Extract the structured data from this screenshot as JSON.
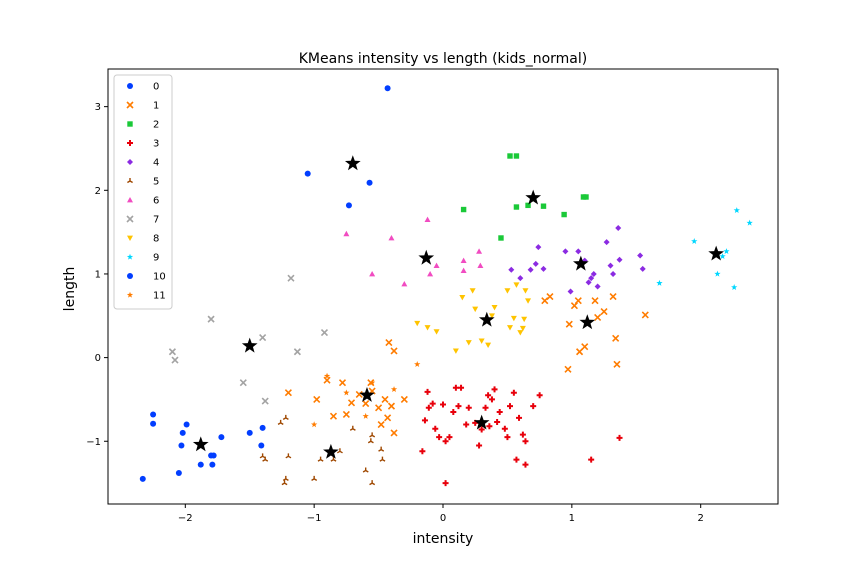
{
  "chart_data": {
    "type": "scatter",
    "title": "KMeans intensity vs length (kids_normal)",
    "xlabel": "intensity",
    "ylabel": "length",
    "xlim": [
      -2.6,
      2.6
    ],
    "ylim": [
      -1.75,
      3.45
    ],
    "xticks": [
      -2,
      -1,
      0,
      1,
      2
    ],
    "yticks": [
      -1,
      0,
      1,
      2,
      3
    ],
    "grid": false,
    "legend": "upper-left",
    "series": [
      {
        "name": "0",
        "color": "#023eff",
        "marker": "circle",
        "points": [
          [
            -2.33,
            -1.45
          ],
          [
            -2.25,
            -0.68
          ],
          [
            -2.25,
            -0.79
          ],
          [
            -2.03,
            -1.05
          ],
          [
            -2.02,
            -0.9
          ],
          [
            -1.99,
            -0.8
          ],
          [
            -1.88,
            -1.28
          ],
          [
            -1.8,
            -1.17
          ],
          [
            -1.79,
            -1.28
          ],
          [
            -1.78,
            -1.17
          ],
          [
            -1.72,
            -0.95
          ],
          [
            -1.5,
            -0.9
          ],
          [
            -1.41,
            -1.05
          ],
          [
            -1.4,
            -0.84
          ],
          [
            -0.43,
            3.22
          ]
        ]
      },
      {
        "name": "1",
        "color": "#ff7c00",
        "marker": "x",
        "points": [
          [
            -1.2,
            -0.42
          ],
          [
            -0.98,
            -0.5
          ],
          [
            -0.9,
            -0.27
          ],
          [
            -0.85,
            -0.7
          ],
          [
            -0.78,
            -0.3
          ],
          [
            -0.75,
            -0.68
          ],
          [
            -0.71,
            -0.54
          ],
          [
            -0.65,
            -0.44
          ],
          [
            -0.6,
            -0.55
          ],
          [
            -0.56,
            -0.3
          ],
          [
            -0.55,
            -0.4
          ],
          [
            -0.5,
            -0.6
          ],
          [
            -0.48,
            -0.8
          ],
          [
            -0.45,
            -0.5
          ],
          [
            -0.4,
            -0.58
          ],
          [
            -0.38,
            -0.9
          ],
          [
            -0.3,
            -0.5
          ],
          [
            -0.42,
            0.18
          ],
          [
            -0.38,
            0.08
          ],
          [
            -0.43,
            -0.72
          ],
          [
            0.98,
            0.4
          ],
          [
            1.02,
            0.62
          ],
          [
            1.05,
            0.68
          ],
          [
            1.1,
            0.13
          ],
          [
            1.06,
            0.07
          ],
          [
            1.2,
            0.48
          ],
          [
            1.25,
            0.55
          ],
          [
            1.32,
            0.73
          ],
          [
            1.34,
            0.23
          ],
          [
            1.35,
            -0.08
          ],
          [
            1.57,
            0.51
          ],
          [
            0.97,
            -0.14
          ],
          [
            0.83,
            0.73
          ],
          [
            0.79,
            0.68
          ],
          [
            1.18,
            0.68
          ]
        ]
      },
      {
        "name": "2",
        "color": "#1ac938",
        "marker": "square",
        "points": [
          [
            0.16,
            1.77
          ],
          [
            0.45,
            1.43
          ],
          [
            0.52,
            2.41
          ],
          [
            0.57,
            2.41
          ],
          [
            0.57,
            1.8
          ],
          [
            0.78,
            1.81
          ],
          [
            0.94,
            1.71
          ],
          [
            1.11,
            1.92
          ],
          [
            1.09,
            1.92
          ],
          [
            0.66,
            1.82
          ]
        ]
      },
      {
        "name": "3",
        "color": "#e8000b",
        "marker": "plus",
        "points": [
          [
            -0.16,
            -1.12
          ],
          [
            -0.14,
            -0.75
          ],
          [
            -0.11,
            -0.6
          ],
          [
            -0.08,
            -0.55
          ],
          [
            -0.06,
            -0.85
          ],
          [
            -0.03,
            -0.95
          ],
          [
            0.0,
            -0.56
          ],
          [
            0.02,
            -1.0
          ],
          [
            0.05,
            -0.95
          ],
          [
            0.08,
            -0.65
          ],
          [
            0.1,
            -0.36
          ],
          [
            0.12,
            -0.58
          ],
          [
            0.14,
            -0.36
          ],
          [
            0.18,
            -0.8
          ],
          [
            0.2,
            -0.6
          ],
          [
            0.25,
            -0.78
          ],
          [
            0.28,
            -1.05
          ],
          [
            0.3,
            -0.86
          ],
          [
            0.33,
            -0.6
          ],
          [
            0.36,
            -0.82
          ],
          [
            0.38,
            -0.5
          ],
          [
            0.4,
            -0.38
          ],
          [
            0.42,
            -0.77
          ],
          [
            0.44,
            -0.65
          ],
          [
            0.48,
            -0.85
          ],
          [
            0.5,
            -0.95
          ],
          [
            0.52,
            -0.58
          ],
          [
            0.55,
            -0.42
          ],
          [
            0.57,
            -1.22
          ],
          [
            0.59,
            -0.72
          ],
          [
            0.62,
            -0.92
          ],
          [
            0.64,
            -1.0
          ],
          [
            0.64,
            -1.28
          ],
          [
            0.7,
            -0.58
          ],
          [
            0.75,
            -0.45
          ],
          [
            1.15,
            -1.22
          ],
          [
            1.37,
            -0.96
          ],
          [
            0.02,
            -1.5
          ],
          [
            -0.12,
            -0.41
          ],
          [
            0.35,
            -0.45
          ]
        ]
      },
      {
        "name": "4",
        "color": "#8b2be2",
        "marker": "diamond",
        "points": [
          [
            0.53,
            1.05
          ],
          [
            0.6,
            0.95
          ],
          [
            0.68,
            1.05
          ],
          [
            0.72,
            1.12
          ],
          [
            0.74,
            1.32
          ],
          [
            0.78,
            1.06
          ],
          [
            0.95,
            1.27
          ],
          [
            0.99,
            0.79
          ],
          [
            1.05,
            1.27
          ],
          [
            1.1,
            1.16
          ],
          [
            1.13,
            0.9
          ],
          [
            1.15,
            0.95
          ],
          [
            1.17,
            1.0
          ],
          [
            1.2,
            0.85
          ],
          [
            1.27,
            1.38
          ],
          [
            1.3,
            1.1
          ],
          [
            1.32,
            1.0
          ],
          [
            1.36,
            1.55
          ],
          [
            1.37,
            1.17
          ],
          [
            1.53,
            1.22
          ],
          [
            1.55,
            1.06
          ]
        ]
      },
      {
        "name": "5",
        "color": "#9f4800",
        "marker": "tri",
        "points": [
          [
            -1.4,
            -1.18
          ],
          [
            -1.38,
            -1.22
          ],
          [
            -1.26,
            -0.78
          ],
          [
            -1.23,
            -1.5
          ],
          [
            -1.22,
            -1.45
          ],
          [
            -1.2,
            -1.18
          ],
          [
            -1.22,
            -0.72
          ],
          [
            -1.0,
            -1.45
          ],
          [
            -0.95,
            -1.22
          ],
          [
            -0.85,
            -1.22
          ],
          [
            -0.8,
            -1.12
          ],
          [
            -0.7,
            -0.85
          ],
          [
            -0.6,
            -1.35
          ],
          [
            -0.56,
            -1.0
          ],
          [
            -0.55,
            -1.5
          ],
          [
            -0.48,
            -1.1
          ],
          [
            -0.47,
            -1.22
          ],
          [
            -0.55,
            -0.93
          ]
        ]
      },
      {
        "name": "6",
        "color": "#f14cc1",
        "marker": "triangle",
        "points": [
          [
            -0.75,
            1.48
          ],
          [
            -0.55,
            1.0
          ],
          [
            -0.4,
            1.43
          ],
          [
            -0.3,
            0.88
          ],
          [
            -0.12,
            1.65
          ],
          [
            -0.1,
            1.0
          ],
          [
            -0.05,
            1.1
          ],
          [
            0.16,
            1.16
          ],
          [
            0.16,
            1.04
          ],
          [
            0.28,
            1.27
          ],
          [
            0.29,
            1.1
          ]
        ]
      },
      {
        "name": "7",
        "color": "#a3a3a3",
        "marker": "x",
        "points": [
          [
            -2.1,
            0.07
          ],
          [
            -2.08,
            -0.03
          ],
          [
            -1.8,
            0.46
          ],
          [
            -1.55,
            -0.3
          ],
          [
            -1.4,
            0.24
          ],
          [
            -1.38,
            -0.52
          ],
          [
            -1.18,
            0.95
          ],
          [
            -1.13,
            0.07
          ],
          [
            -0.92,
            0.3
          ]
        ]
      },
      {
        "name": "8",
        "color": "#ffc400",
        "marker": "triangle-down",
        "points": [
          [
            -0.2,
            0.41
          ],
          [
            -0.12,
            0.36
          ],
          [
            -0.05,
            0.31
          ],
          [
            0.1,
            0.08
          ],
          [
            0.15,
            0.72
          ],
          [
            0.2,
            0.18
          ],
          [
            0.23,
            0.8
          ],
          [
            0.25,
            0.58
          ],
          [
            0.3,
            0.2
          ],
          [
            0.35,
            0.15
          ],
          [
            0.38,
            0.5
          ],
          [
            0.4,
            0.6
          ],
          [
            0.5,
            0.8
          ],
          [
            0.52,
            0.36
          ],
          [
            0.55,
            0.47
          ],
          [
            0.57,
            0.87
          ],
          [
            0.6,
            0.3
          ],
          [
            0.62,
            0.35
          ],
          [
            0.63,
            0.46
          ],
          [
            0.64,
            0.8
          ],
          [
            0.66,
            0.68
          ]
        ]
      },
      {
        "name": "9",
        "color": "#00d7ff",
        "marker": "star",
        "points": [
          [
            1.68,
            0.89
          ],
          [
            1.95,
            1.39
          ],
          [
            2.13,
            1.0
          ],
          [
            2.17,
            1.21
          ],
          [
            2.2,
            1.27
          ],
          [
            2.26,
            0.84
          ],
          [
            2.28,
            1.76
          ],
          [
            2.38,
            1.61
          ]
        ]
      },
      {
        "name": "10",
        "color": "#023eff",
        "marker": "circle",
        "points": [
          [
            -2.05,
            -1.38
          ],
          [
            -1.05,
            2.2
          ],
          [
            -0.73,
            1.82
          ],
          [
            -0.57,
            2.09
          ]
        ]
      },
      {
        "name": "11",
        "color": "#ff7c00",
        "marker": "star",
        "points": [
          [
            -1.0,
            -0.8
          ],
          [
            -0.9,
            -0.22
          ],
          [
            -0.75,
            -0.42
          ],
          [
            -0.6,
            -0.7
          ],
          [
            -0.55,
            -0.3
          ],
          [
            -0.2,
            -0.08
          ],
          [
            -0.38,
            -0.38
          ]
        ]
      }
    ],
    "centroids": {
      "color": "#000000",
      "marker": "star",
      "points": [
        [
          -1.88,
          -1.04
        ],
        [
          -0.87,
          -1.13
        ],
        [
          -0.59,
          -0.45
        ],
        [
          -1.5,
          0.14
        ],
        [
          -0.7,
          2.32
        ],
        [
          -0.13,
          1.19
        ],
        [
          0.3,
          -0.78
        ],
        [
          0.34,
          0.45
        ],
        [
          0.7,
          1.91
        ],
        [
          1.07,
          1.12
        ],
        [
          1.12,
          0.42
        ],
        [
          2.12,
          1.24
        ]
      ]
    }
  }
}
